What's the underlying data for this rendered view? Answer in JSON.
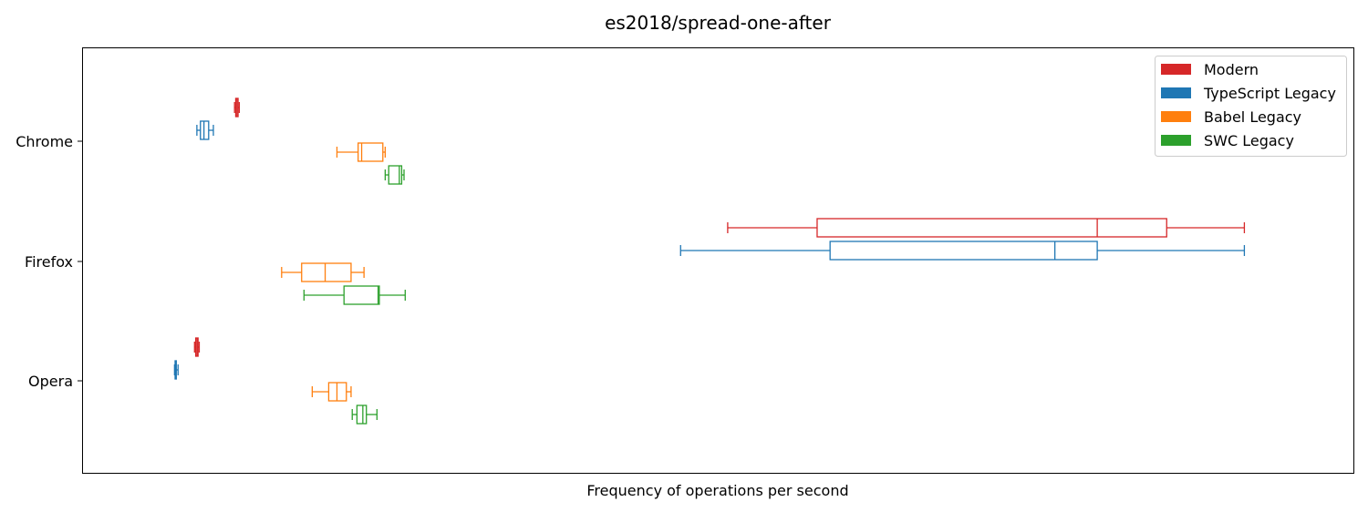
{
  "chart_data": {
    "type": "boxplot",
    "orientation": "horizontal",
    "title": "es2018/spread-one-after",
    "xlabel": "Frequency of operations per second",
    "ylabel": "",
    "x_ticks_shown": false,
    "grid": false,
    "legend_position": "top-right",
    "xlim": [
      0,
      1000
    ],
    "categories": [
      "Chrome",
      "Firefox",
      "Opera"
    ],
    "series": [
      {
        "name": "Modern",
        "color": "#d62728",
        "boxes": [
          {
            "whislo": 97,
            "q1": 98,
            "med": 99,
            "q3": 100,
            "whishi": 101
          },
          {
            "whislo": 516,
            "q1": 592,
            "med": 830,
            "q3": 889,
            "whishi": 955
          },
          {
            "whislo": 63,
            "q1": 64,
            "med": 65,
            "q3": 66,
            "whishi": 67
          }
        ]
      },
      {
        "name": "TypeScript Legacy",
        "color": "#1f77b4",
        "boxes": [
          {
            "whislo": 65,
            "q1": 68,
            "med": 71,
            "q3": 75,
            "whishi": 79
          },
          {
            "whislo": 476,
            "q1": 603,
            "med": 794,
            "q3": 830,
            "whishi": 955
          },
          {
            "whislo": 46,
            "q1": 46.5,
            "med": 47,
            "q3": 47.5,
            "whishi": 49
          }
        ]
      },
      {
        "name": "Babel Legacy",
        "color": "#ff7f0e",
        "boxes": [
          {
            "whislo": 184,
            "q1": 202,
            "med": 205,
            "q3": 223,
            "whishi": 225
          },
          {
            "whislo": 137,
            "q1": 154,
            "med": 174,
            "q3": 196,
            "whishi": 207
          },
          {
            "whislo": 163,
            "q1": 177,
            "med": 184,
            "q3": 192,
            "whishi": 196
          }
        ]
      },
      {
        "name": "SWC Legacy",
        "color": "#2ca02c",
        "boxes": [
          {
            "whislo": 225,
            "q1": 228,
            "med": 237,
            "q3": 239,
            "whishi": 241
          },
          {
            "whislo": 156,
            "q1": 190,
            "med": 219,
            "q3": 220,
            "whishi": 242
          },
          {
            "whislo": 197,
            "q1": 201,
            "med": 206,
            "q3": 209,
            "whishi": 218
          }
        ]
      }
    ]
  }
}
